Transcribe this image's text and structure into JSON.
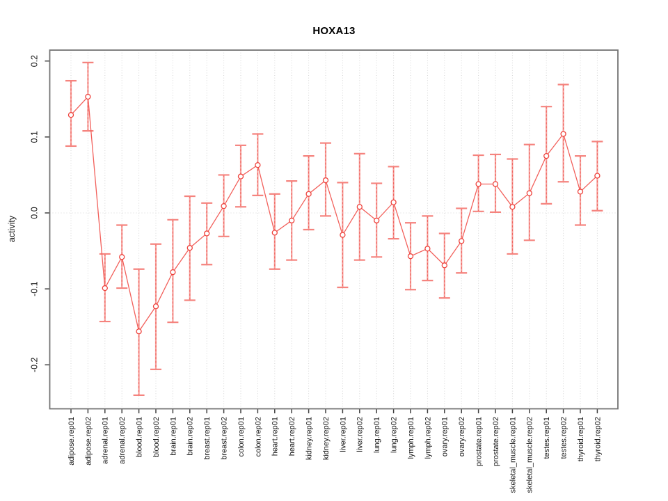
{
  "chart_data": {
    "type": "line",
    "title": "HOXA13",
    "ylabel": "activity",
    "xlabel": "",
    "legend": "none",
    "grid": {
      "vertical": "dotted gray line at every category",
      "horizontal": "dotted gray line at y=0 only"
    },
    "marker": "open-circle",
    "error_bars": true,
    "ylim": [
      -0.258,
      0.214
    ],
    "yticks": [
      0.2,
      0.1,
      0.0,
      -0.1,
      -0.2
    ],
    "ytick_labels": [
      "0.2",
      "0.1",
      "0.0",
      "-0.1",
      "-0.2"
    ],
    "categories": [
      "adipose.rep01",
      "adipose.rep02",
      "adrenal.rep01",
      "adrenal.rep02",
      "blood.rep01",
      "blood.rep02",
      "brain.rep01",
      "brain.rep02",
      "breast.rep01",
      "breast.rep02",
      "colon.rep01",
      "colon.rep02",
      "heart.rep01",
      "heart.rep02",
      "kidney.rep01",
      "kidney.rep02",
      "liver.rep01",
      "liver.rep02",
      "lung.rep01",
      "lung.rep02",
      "lymph.rep01",
      "lymph.rep02",
      "ovary.rep01",
      "ovary.rep02",
      "prostate.rep01",
      "prostate.rep02",
      "skeletal_muscle.rep01",
      "skeletal_muscle.rep02",
      "testes.rep01",
      "testes.rep02",
      "thyroid.rep01",
      "thyroid.rep02"
    ],
    "series": [
      {
        "name": "activity",
        "values": [
          0.129,
          0.153,
          -0.099,
          -0.058,
          -0.156,
          -0.123,
          -0.078,
          -0.046,
          -0.027,
          0.009,
          0.048,
          0.063,
          -0.026,
          -0.01,
          0.025,
          0.043,
          -0.029,
          0.008,
          -0.01,
          0.014,
          -0.057,
          -0.047,
          -0.069,
          -0.037,
          0.038,
          0.038,
          0.008,
          0.026,
          0.075,
          0.104,
          0.028,
          0.049
        ],
        "ci_low": [
          0.088,
          0.108,
          -0.143,
          -0.099,
          -0.24,
          -0.206,
          -0.144,
          -0.115,
          -0.068,
          -0.031,
          0.008,
          0.023,
          -0.074,
          -0.062,
          -0.022,
          -0.004,
          -0.098,
          -0.062,
          -0.058,
          -0.034,
          -0.101,
          -0.089,
          -0.112,
          -0.079,
          0.002,
          0.001,
          -0.054,
          -0.036,
          0.012,
          0.041,
          -0.016,
          0.003
        ],
        "ci_high": [
          0.174,
          0.198,
          -0.054,
          -0.016,
          -0.074,
          -0.041,
          -0.009,
          0.022,
          0.013,
          0.05,
          0.089,
          0.104,
          0.025,
          0.042,
          0.075,
          0.092,
          0.04,
          0.078,
          0.039,
          0.061,
          -0.013,
          -0.004,
          -0.027,
          0.006,
          0.076,
          0.077,
          0.071,
          0.09,
          0.14,
          0.169,
          0.075,
          0.094
        ]
      }
    ],
    "colors": {
      "point": "#ee423c",
      "line": "#f2605b",
      "error_bar": "#f5837e",
      "error_bar_dash": "#ef4a44",
      "gridline": "#d6d6d6",
      "zero_line": "#d6d6d6",
      "box_border": "#737373",
      "tick": "#404040",
      "text": "#151515",
      "background": "#ffffff"
    }
  }
}
